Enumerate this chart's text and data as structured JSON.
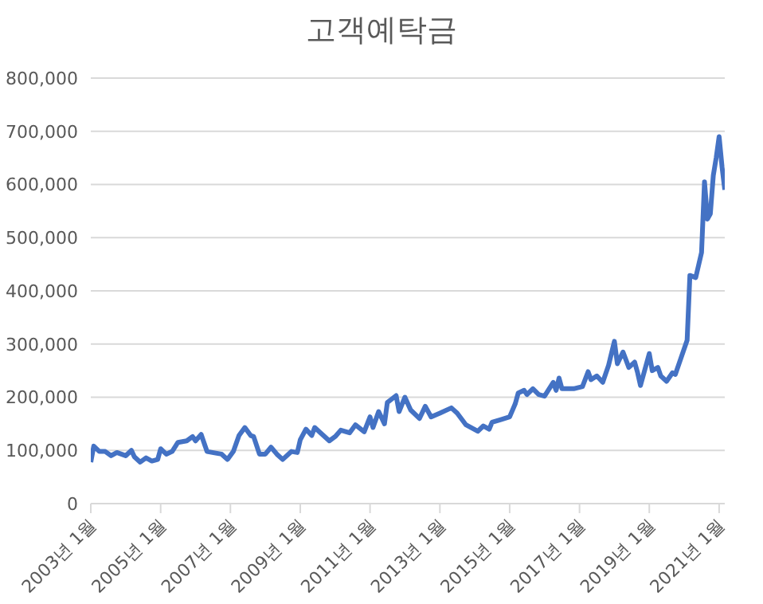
{
  "chart_data": {
    "type": "line",
    "title": "고객예탁금",
    "x": [
      "2003-01",
      "2003-02",
      "2003-04",
      "2003-06",
      "2003-08",
      "2003-10",
      "2004-01",
      "2004-03",
      "2004-04",
      "2004-06",
      "2004-08",
      "2004-10",
      "2004-12",
      "2005-01",
      "2005-03",
      "2005-05",
      "2005-07",
      "2005-10",
      "2005-12",
      "2006-01",
      "2006-03",
      "2006-05",
      "2006-08",
      "2006-10",
      "2006-12",
      "2007-02",
      "2007-04",
      "2007-06",
      "2007-08",
      "2007-09",
      "2007-11",
      "2008-01",
      "2008-03",
      "2008-05",
      "2008-07",
      "2008-10",
      "2008-12",
      "2009-01",
      "2009-03",
      "2009-05",
      "2009-06",
      "2009-08",
      "2009-11",
      "2010-01",
      "2010-03",
      "2010-06",
      "2010-08",
      "2010-11",
      "2011-01",
      "2011-02",
      "2011-04",
      "2011-06",
      "2011-07",
      "2011-10",
      "2011-11",
      "2012-01",
      "2012-03",
      "2012-06",
      "2012-08",
      "2012-10",
      "2013-01",
      "2013-05",
      "2013-07",
      "2013-10",
      "2014-02",
      "2014-04",
      "2014-06",
      "2014-07",
      "2014-10",
      "2015-01",
      "2015-03",
      "2015-04",
      "2015-06",
      "2015-07",
      "2015-09",
      "2015-11",
      "2016-01",
      "2016-04",
      "2016-05",
      "2016-06",
      "2016-07",
      "2016-11",
      "2017-02",
      "2017-04",
      "2017-05",
      "2017-07",
      "2017-09",
      "2017-11",
      "2018-01",
      "2018-02",
      "2018-04",
      "2018-06",
      "2018-08",
      "2018-09",
      "2018-10",
      "2019-01",
      "2019-02",
      "2019-04",
      "2019-05",
      "2019-07",
      "2019-09",
      "2019-10",
      "2020-02",
      "2020-03",
      "2020-05",
      "2020-07",
      "2020-08",
      "2020-09",
      "2020-10",
      "2020-11",
      "2020-12",
      "2021-01",
      "2021-02",
      "2021-03"
    ],
    "series": [
      {
        "color": "#4472c4",
        "values": [
          78000,
          108000,
          98000,
          98000,
          90000,
          96000,
          90000,
          100000,
          88000,
          78000,
          86000,
          80000,
          83000,
          103000,
          93000,
          98000,
          115000,
          118000,
          126000,
          118000,
          130000,
          98000,
          95000,
          93000,
          83000,
          98000,
          128000,
          143000,
          128000,
          126000,
          93000,
          93000,
          106000,
          93000,
          83000,
          98000,
          96000,
          120000,
          140000,
          128000,
          143000,
          133000,
          118000,
          126000,
          138000,
          133000,
          148000,
          135000,
          163000,
          143000,
          173000,
          150000,
          190000,
          203000,
          173000,
          200000,
          176000,
          160000,
          183000,
          163000,
          170000,
          180000,
          170000,
          148000,
          136000,
          146000,
          140000,
          153000,
          158000,
          163000,
          188000,
          208000,
          213000,
          205000,
          216000,
          205000,
          202000,
          228000,
          213000,
          236000,
          216000,
          216000,
          220000,
          248000,
          233000,
          240000,
          228000,
          260000,
          305000,
          263000,
          285000,
          256000,
          266000,
          246000,
          222000,
          282000,
          250000,
          256000,
          240000,
          230000,
          246000,
          243000,
          307000,
          429000,
          425000,
          472000,
          605000,
          535000,
          545000,
          617000,
          650000,
          690000,
          632000,
          590000
        ]
      }
    ],
    "xlim": [
      "2003-01",
      "2021-03"
    ],
    "xticks": [
      {
        "value": "2003-01",
        "label": "2003년 1월"
      },
      {
        "value": "2005-01",
        "label": "2005년 1월"
      },
      {
        "value": "2007-01",
        "label": "2007년 1월"
      },
      {
        "value": "2009-01",
        "label": "2009년 1월"
      },
      {
        "value": "2011-01",
        "label": "2011년 1월"
      },
      {
        "value": "2013-01",
        "label": "2013년 1월"
      },
      {
        "value": "2015-01",
        "label": "2015년 1월"
      },
      {
        "value": "2017-01",
        "label": "2017년 1월"
      },
      {
        "value": "2019-01",
        "label": "2019년 1월"
      },
      {
        "value": "2021-01",
        "label": "2021년 1월"
      }
    ],
    "ylim": [
      0,
      800000
    ],
    "yticks": [
      {
        "value": 0,
        "label": "0"
      },
      {
        "value": 100000,
        "label": "100,000"
      },
      {
        "value": 200000,
        "label": "200,000"
      },
      {
        "value": 300000,
        "label": "300,000"
      },
      {
        "value": 400000,
        "label": "400,000"
      },
      {
        "value": 500000,
        "label": "500,000"
      },
      {
        "value": 600000,
        "label": "600,000"
      },
      {
        "value": 700000,
        "label": "700,000"
      },
      {
        "value": 800000,
        "label": "800,000"
      }
    ],
    "grid": "y",
    "legend": false,
    "marker": "none",
    "line_style": "solid"
  }
}
